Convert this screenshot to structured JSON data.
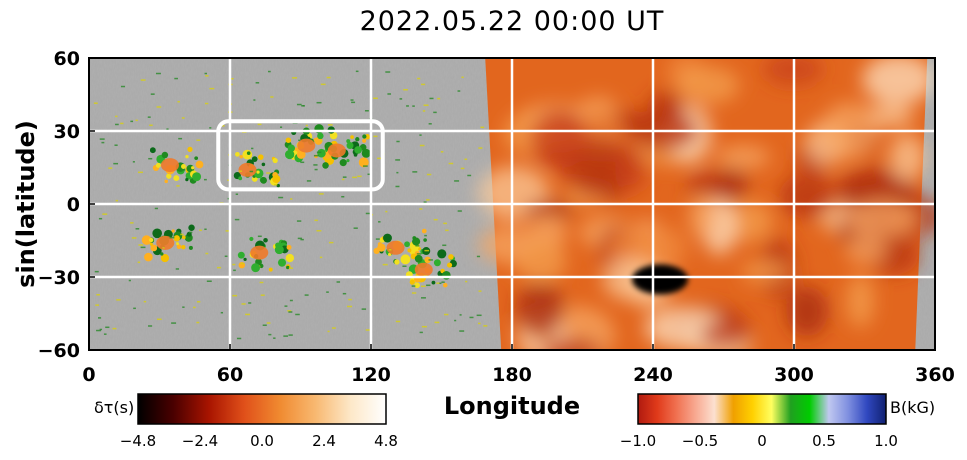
{
  "title": "2022.05.22  00:00  UT",
  "chart_data": {
    "type": "heatmap",
    "title": "2022.05.22  00:00  UT",
    "xlabel": "Longitude",
    "ylabel": "sin(latitude)",
    "xlim": [
      0,
      360
    ],
    "ylim": [
      -60,
      60
    ],
    "x_ticks": [
      0,
      60,
      120,
      180,
      240,
      300,
      360
    ],
    "y_ticks": [
      60,
      30,
      0,
      -30,
      -60
    ],
    "grid": true,
    "far_side_longitude_range": [
      172,
      355
    ],
    "highlight_box": {
      "longitude": [
        55,
        125
      ],
      "latitude": [
        6,
        34
      ]
    },
    "colorbar_left": {
      "label": "δτ(s)",
      "range": [
        -4.8,
        4.8
      ],
      "ticks": [
        "−4.8",
        "−2.4",
        "0.0",
        "2.4",
        "4.8"
      ],
      "stops": [
        "#000000",
        "#4a0000",
        "#a81400",
        "#e0501a",
        "#f08a30",
        "#f8b870",
        "#fde8c8",
        "#ffffff"
      ]
    },
    "colorbar_right": {
      "label": "B(kG)",
      "range": [
        -1.0,
        1.0
      ],
      "ticks": [
        "−1.0",
        "−0.5",
        "0",
        "0.5",
        "1.0"
      ],
      "stops": [
        "#b01a10",
        "#e03a1a",
        "#f07050",
        "#f8a890",
        "#fce0d0",
        "#f0a000",
        "#ffd000",
        "#ffff60",
        "#20a020",
        "#00cc00",
        "#c0c8f0",
        "#8090e0",
        "#3048c0",
        "#102070"
      ]
    },
    "active_regions_near_side": [
      {
        "longitude": 37,
        "latitude": 16
      },
      {
        "longitude": 70,
        "latitude": 14
      },
      {
        "longitude": 95,
        "latitude": 24
      },
      {
        "longitude": 108,
        "latitude": 22
      },
      {
        "longitude": 35,
        "latitude": -16
      },
      {
        "longitude": 75,
        "latitude": -20
      },
      {
        "longitude": 133,
        "latitude": -18
      },
      {
        "longitude": 145,
        "latitude": -27
      }
    ],
    "far_side_features": [
      {
        "longitude": 243,
        "latitude": -31,
        "delta_tau": -4.5
      }
    ]
  }
}
